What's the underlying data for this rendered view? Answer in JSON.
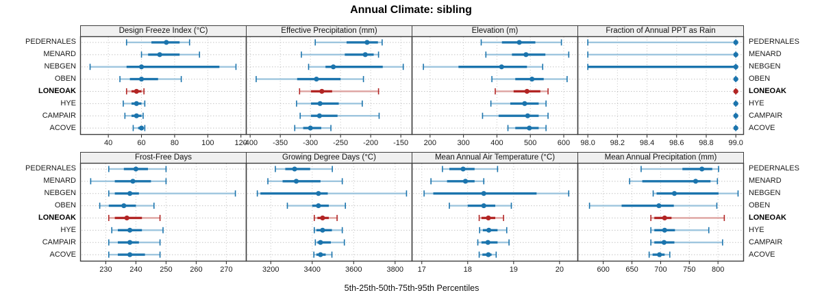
{
  "title": "Annual Climate: sibling",
  "xlabel": "5th-25th-50th-75th-95th Percentiles",
  "colors": {
    "accent_blue": "#1b74ad",
    "accent_blue_light": "#9dc5de",
    "highlight_red": "#b22524",
    "highlight_red_light": "#dda29f",
    "strip_bg": "#f0f0f0",
    "panel_border": "#3c3c3c",
    "grid": "#c4c4c4"
  },
  "chart_data": {
    "type": "dotplot-percentiles",
    "percentiles": [
      5,
      25,
      50,
      75,
      95
    ],
    "legend_note": "5th-25th-50th-75th-95th Percentiles",
    "sites": [
      "PEDERNALES",
      "MENARD",
      "NEBGEN",
      "OBEN",
      "LONEOAK",
      "HYE",
      "CAMPAIR",
      "ACOVE"
    ],
    "highlight_site": "LONEOAK",
    "panels": [
      {
        "title": "Design Freeze Index (°C)",
        "row": 0,
        "col": 0,
        "xlim": [
          23,
          123
        ],
        "ticks": [
          40,
          60,
          80,
          100,
          120
        ],
        "tick_labels": [
          "40",
          "60",
          "80",
          "100",
          "120"
        ],
        "values": {
          "PEDERNALES": [
            51,
            66,
            75,
            83,
            89
          ],
          "MENARD": [
            60,
            64,
            71,
            83,
            95
          ],
          "NEBGEN": [
            29,
            51,
            60,
            107,
            117
          ],
          "OBEN": [
            47,
            53,
            60,
            70,
            84
          ],
          "LONEOAK": [
            51,
            54,
            57,
            60,
            61.5
          ],
          "HYE": [
            49,
            54,
            57,
            60,
            62
          ],
          "CAMPAIR": [
            50,
            54,
            57,
            60,
            61
          ],
          "ACOVE": [
            55,
            58,
            60,
            61,
            62
          ]
        }
      },
      {
        "title": "Effective Precipitation (mm)",
        "row": 0,
        "col": 1,
        "xlim": [
          -407,
          -132
        ],
        "ticks": [
          -400,
          -350,
          -300,
          -250,
          -200,
          -150
        ],
        "tick_labels": [
          "-400",
          "-350",
          "-300",
          "-250",
          "-200",
          "-150"
        ],
        "values": {
          "PEDERNALES": [
            -292,
            -240,
            -206,
            -188,
            -181
          ],
          "MENARD": [
            -315,
            -243,
            -209,
            -195,
            -187
          ],
          "NEBGEN": [
            -303,
            -275,
            -262,
            -180,
            -146
          ],
          "OBEN": [
            -390,
            -322,
            -290,
            -250,
            -212
          ],
          "LONEOAK": [
            -318,
            -299,
            -281,
            -264,
            -187
          ],
          "HYE": [
            -323,
            -299,
            -284,
            -253,
            -214
          ],
          "CAMPAIR": [
            -317,
            -299,
            -285,
            -255,
            -186
          ],
          "ACOVE": [
            -326,
            -312,
            -300,
            -282,
            -266
          ]
        }
      },
      {
        "title": "Elevation (m)",
        "row": 0,
        "col": 2,
        "xlim": [
          145,
          641
        ],
        "ticks": [
          200,
          300,
          400,
          500,
          600
        ],
        "tick_labels": [
          "200",
          "300",
          "400",
          "500",
          "600"
        ],
        "values": {
          "PEDERNALES": [
            353,
            415,
            467,
            515,
            593
          ],
          "MENARD": [
            367,
            445,
            487,
            545,
            615
          ],
          "NEBGEN": [
            180,
            285,
            414,
            490,
            537
          ],
          "OBEN": [
            385,
            455,
            505,
            540,
            610
          ],
          "LONEOAK": [
            395,
            450,
            490,
            530,
            553
          ],
          "HYE": [
            382,
            440,
            483,
            525,
            547
          ],
          "CAMPAIR": [
            357,
            405,
            492,
            525,
            553
          ],
          "ACOVE": [
            433,
            455,
            497,
            525,
            547
          ]
        }
      },
      {
        "title": "Fraction of Annual PPT as Rain",
        "row": 0,
        "col": 3,
        "xlim": [
          97.93,
          99.05
        ],
        "ticks": [
          98.0,
          98.2,
          98.4,
          98.6,
          98.8,
          99.0
        ],
        "tick_labels": [
          "98.0",
          "98.2",
          "98.4",
          "98.6",
          "98.8",
          "99.0"
        ],
        "values": {
          "PEDERNALES": [
            98,
            99,
            99,
            99,
            99
          ],
          "MENARD": [
            98,
            99,
            99,
            99,
            99
          ],
          "NEBGEN": [
            98,
            98,
            99,
            99,
            99
          ],
          "OBEN": [
            99,
            99,
            99,
            99,
            99
          ],
          "LONEOAK": [
            99,
            99,
            99,
            99,
            99
          ],
          "HYE": [
            99,
            99,
            99,
            99,
            99
          ],
          "CAMPAIR": [
            99,
            99,
            99,
            99,
            99
          ],
          "ACOVE": [
            99,
            99,
            99,
            99,
            99
          ]
        }
      },
      {
        "title": "Frost-Free Days",
        "row": 1,
        "col": 0,
        "xlim": [
          221.5,
          276.5
        ],
        "ticks": [
          230,
          240,
          250,
          260,
          270
        ],
        "tick_labels": [
          "230",
          "240",
          "250",
          "260",
          "270"
        ],
        "values": {
          "PEDERNALES": [
            231,
            236,
            240,
            244,
            250
          ],
          "MENARD": [
            225,
            233,
            239,
            245,
            250
          ],
          "NEBGEN": [
            231,
            233,
            238,
            241,
            273
          ],
          "OBEN": [
            228,
            231,
            236,
            240,
            246
          ],
          "LONEOAK": [
            231,
            233,
            237,
            242,
            248
          ],
          "HYE": [
            232,
            234,
            238,
            242,
            249
          ],
          "CAMPAIR": [
            231,
            234,
            238,
            241,
            248
          ],
          "ACOVE": [
            231,
            234,
            238,
            243,
            248
          ]
        }
      },
      {
        "title": "Growing Degree Days (°C)",
        "row": 1,
        "col": 1,
        "xlim": [
          3080,
          3880
        ],
        "ticks": [
          3200,
          3400,
          3600,
          3800
        ],
        "tick_labels": [
          "3200",
          "3400",
          "3600",
          "3800"
        ],
        "values": {
          "PEDERNALES": [
            3222,
            3270,
            3315,
            3390,
            3497
          ],
          "MENARD": [
            3186,
            3257,
            3323,
            3440,
            3545
          ],
          "NEBGEN": [
            3135,
            3150,
            3430,
            3475,
            3855
          ],
          "OBEN": [
            3280,
            3400,
            3430,
            3480,
            3560
          ],
          "LONEOAK": [
            3410,
            3425,
            3450,
            3480,
            3520
          ],
          "HYE": [
            3410,
            3420,
            3450,
            3495,
            3545
          ],
          "CAMPAIR": [
            3415,
            3425,
            3440,
            3490,
            3555
          ],
          "ACOVE": [
            3408,
            3420,
            3440,
            3465,
            3495
          ]
        }
      },
      {
        "title": "Mean Annual Air Temperature (°C)",
        "row": 1,
        "col": 2,
        "xlim": [
          16.78,
          20.39
        ],
        "ticks": [
          17,
          18,
          19,
          20
        ],
        "tick_labels": [
          "17",
          "18",
          "19",
          "20"
        ],
        "values": {
          "PEDERNALES": [
            17.45,
            17.6,
            17.9,
            18.15,
            18.65
          ],
          "MENARD": [
            17.2,
            17.55,
            17.95,
            18.15,
            18.35
          ],
          "NEBGEN": [
            17.05,
            17.25,
            18.35,
            19.5,
            20.2
          ],
          "OBEN": [
            17.6,
            18.0,
            18.35,
            18.6,
            18.95
          ],
          "LONEOAK": [
            18.25,
            18.3,
            18.45,
            18.6,
            18.78
          ],
          "HYE": [
            18.26,
            18.33,
            18.46,
            18.65,
            18.85
          ],
          "CAMPAIR": [
            18.22,
            18.3,
            18.44,
            18.65,
            18.9
          ],
          "ACOVE": [
            18.25,
            18.32,
            18.45,
            18.52,
            18.62
          ]
        }
      },
      {
        "title": "Mean Annual Precipitation (mm)",
        "row": 1,
        "col": 3,
        "xlim": [
          555,
          844
        ],
        "ticks": [
          600,
          650,
          700,
          750,
          800
        ],
        "tick_labels": [
          "600",
          "650",
          "700",
          "750",
          "800"
        ],
        "values": {
          "PEDERNALES": [
            666,
            738,
            772,
            790,
            801
          ],
          "MENARD": [
            646,
            668,
            761,
            787,
            799
          ],
          "NEBGEN": [
            687,
            693,
            724,
            801,
            835
          ],
          "OBEN": [
            576,
            632,
            697,
            723,
            798
          ],
          "LONEOAK": [
            683,
            689,
            707,
            719,
            811
          ],
          "HYE": [
            683,
            689,
            707,
            725,
            784
          ],
          "CAMPAIR": [
            683,
            689,
            706,
            724,
            808
          ],
          "ACOVE": [
            680,
            686,
            698,
            707,
            716
          ]
        }
      }
    ]
  }
}
